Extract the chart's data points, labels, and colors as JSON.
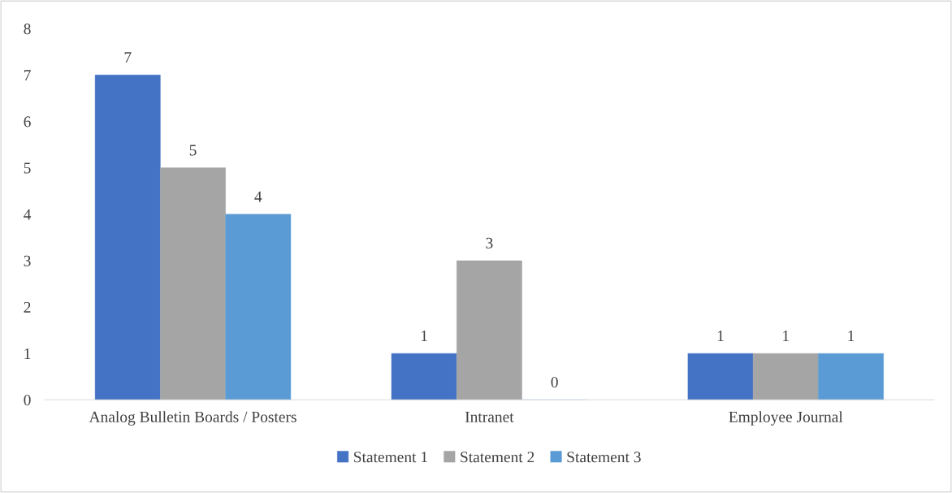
{
  "chart_data": {
    "type": "bar",
    "categories": [
      "Analog Bulletin Boards / Posters",
      "Intranet",
      "Employee Journal"
    ],
    "series": [
      {
        "name": "Statement 1",
        "color": "#4472c4",
        "values": [
          7,
          1,
          1
        ]
      },
      {
        "name": "Statement 2",
        "color": "#a5a5a5",
        "values": [
          5,
          3,
          1
        ]
      },
      {
        "name": "Statement 3",
        "color": "#5b9bd5",
        "values": [
          4,
          0,
          1
        ]
      }
    ],
    "ylim": [
      0,
      8
    ],
    "yticks": [
      0,
      1,
      2,
      3,
      4,
      5,
      6,
      7,
      8
    ],
    "data_labels": true,
    "grid": false,
    "legend": "bottom"
  }
}
